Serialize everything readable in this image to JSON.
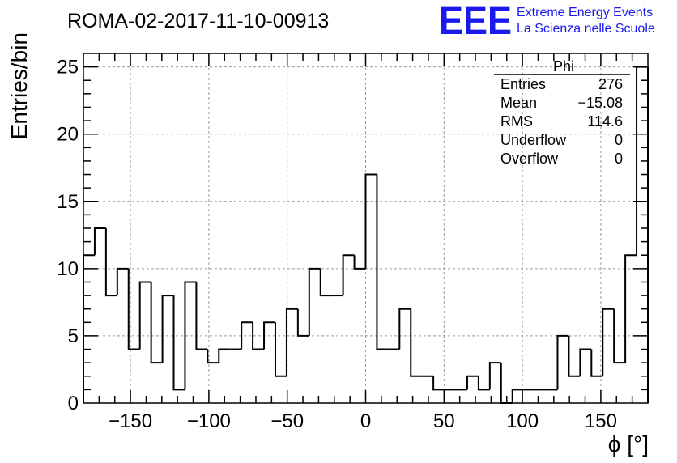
{
  "chart_data": {
    "type": "bar",
    "style": "step-histogram",
    "title": "ROMA-02-2017-11-10-00913",
    "xlabel": "ϕ [°]",
    "ylabel": "Entries/bin",
    "xlim": [
      -180,
      180
    ],
    "ylim": [
      0,
      26
    ],
    "bin_width": 7.2,
    "grid": true,
    "x_ticks": [
      -150,
      -100,
      -50,
      0,
      50,
      100,
      150
    ],
    "x_tick_labels": [
      "−150",
      "−100",
      "−50",
      "0",
      "50",
      "100",
      "150"
    ],
    "y_ticks": [
      0,
      5,
      10,
      15,
      20,
      25
    ],
    "y_tick_labels": [
      "0",
      "5",
      "10",
      "15",
      "20",
      "25"
    ],
    "values": [
      11,
      13,
      8,
      10,
      4,
      9,
      3,
      8,
      1,
      9,
      4,
      3,
      4,
      4,
      6,
      4,
      6,
      2,
      7,
      5,
      10,
      8,
      8,
      11,
      10,
      17,
      4,
      4,
      7,
      2,
      2,
      1,
      1,
      1,
      2,
      1,
      3,
      0,
      1,
      1,
      1,
      1,
      5,
      2,
      4,
      2,
      7,
      3,
      11,
      25
    ],
    "line_color": "#000000",
    "stats_box": {
      "title": "Phi",
      "rows": [
        {
          "label": "Entries",
          "value": "276"
        },
        {
          "label": "Mean",
          "value": "−15.08"
        },
        {
          "label": "RMS",
          "value": "114.6"
        },
        {
          "label": "Underflow",
          "value": "0"
        },
        {
          "label": "Overflow",
          "value": "0"
        }
      ]
    }
  },
  "branding": {
    "logo_text": "EEE",
    "line1": "Extreme Energy Events",
    "line2": "La Scienza nelle Scuole",
    "color": "#1a1aee"
  }
}
